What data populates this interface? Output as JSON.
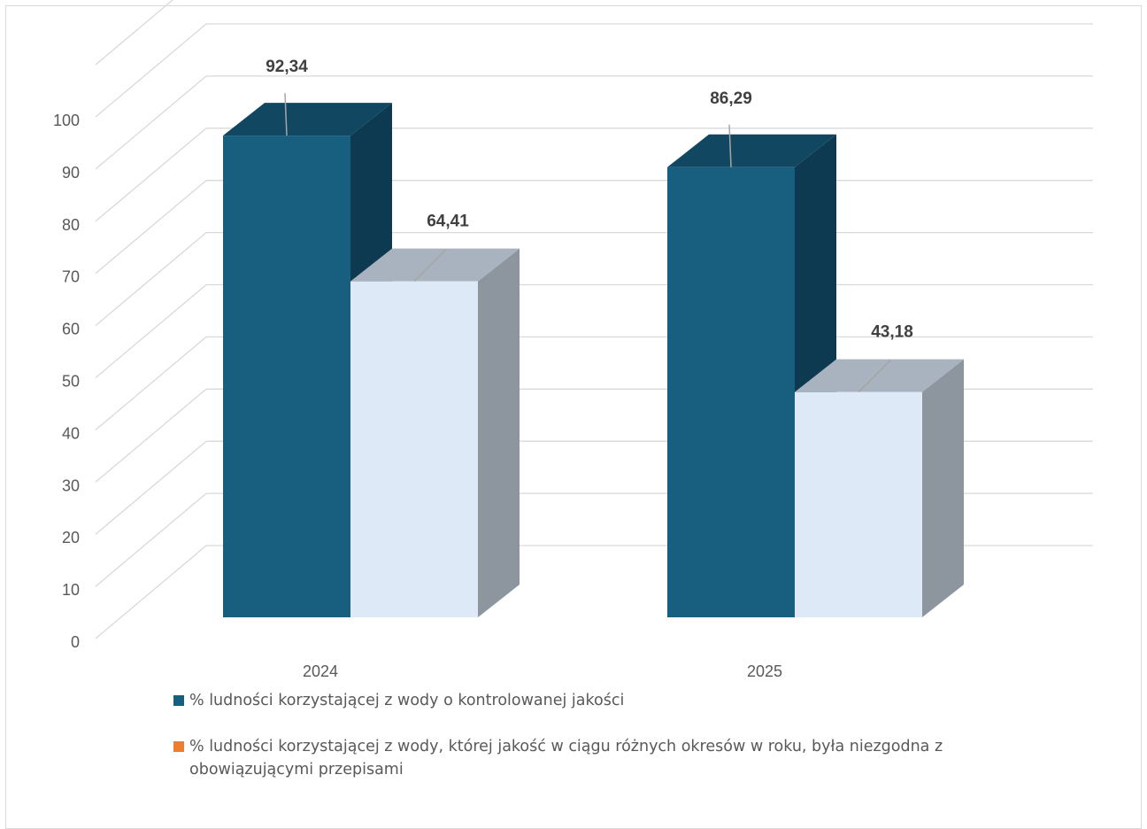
{
  "chart_data": {
    "type": "bar",
    "style": "3d-column",
    "categories": [
      "2024",
      "2025"
    ],
    "series": [
      {
        "name": "% ludności korzystającej z wody o kontrolowanej jakości",
        "values": [
          92.34,
          86.29
        ],
        "color": "#175e7f"
      },
      {
        "name": "% ludności korzystającej z wody, której jakość w ciągu różnych okresów w roku, była niezgodna z obowiązującymi przepisami",
        "values": [
          64.41,
          43.18
        ],
        "color": "#dde9f6"
      }
    ],
    "data_labels": [
      [
        "92,34",
        "86,29"
      ],
      [
        "64,41",
        "43,18"
      ]
    ],
    "y_ticks": [
      "0",
      "10",
      "20",
      "30",
      "40",
      "50",
      "60",
      "70",
      "80",
      "90",
      "100"
    ],
    "ylim": [
      0,
      110
    ],
    "grid": true,
    "legend_position": "bottom",
    "legend_swatch_colors": [
      "#175e7f",
      "#ed7d31"
    ]
  }
}
